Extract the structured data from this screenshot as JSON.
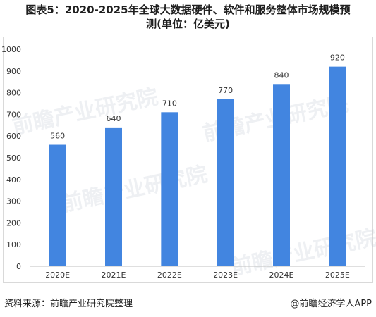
{
  "title_line1": "图表5：2020-2025年全球大数据硬件、软件和服务整体市场规模预",
  "title_line2": "测(单位：亿美元)",
  "source": "资料来源：前瞻产业研究院整理",
  "credit": "@前瞻经济学人APP",
  "watermark": "前瞻产业研究院",
  "colors": {
    "bar": "#4285e0",
    "axis": "#bfbfbf",
    "text": "#333333"
  },
  "chart_data": {
    "type": "bar",
    "title": "图表5：2020-2025年全球大数据硬件、软件和服务整体市场规模预测(单位：亿美元)",
    "categories": [
      "2020E",
      "2021E",
      "2022E",
      "2023E",
      "2024E",
      "2025E"
    ],
    "values": [
      560,
      640,
      710,
      770,
      840,
      920
    ],
    "ylim": [
      0,
      1000
    ],
    "yticks": [
      0,
      100,
      200,
      300,
      400,
      500,
      600,
      700,
      800,
      900,
      1000
    ],
    "grid": false,
    "legend": "none"
  }
}
